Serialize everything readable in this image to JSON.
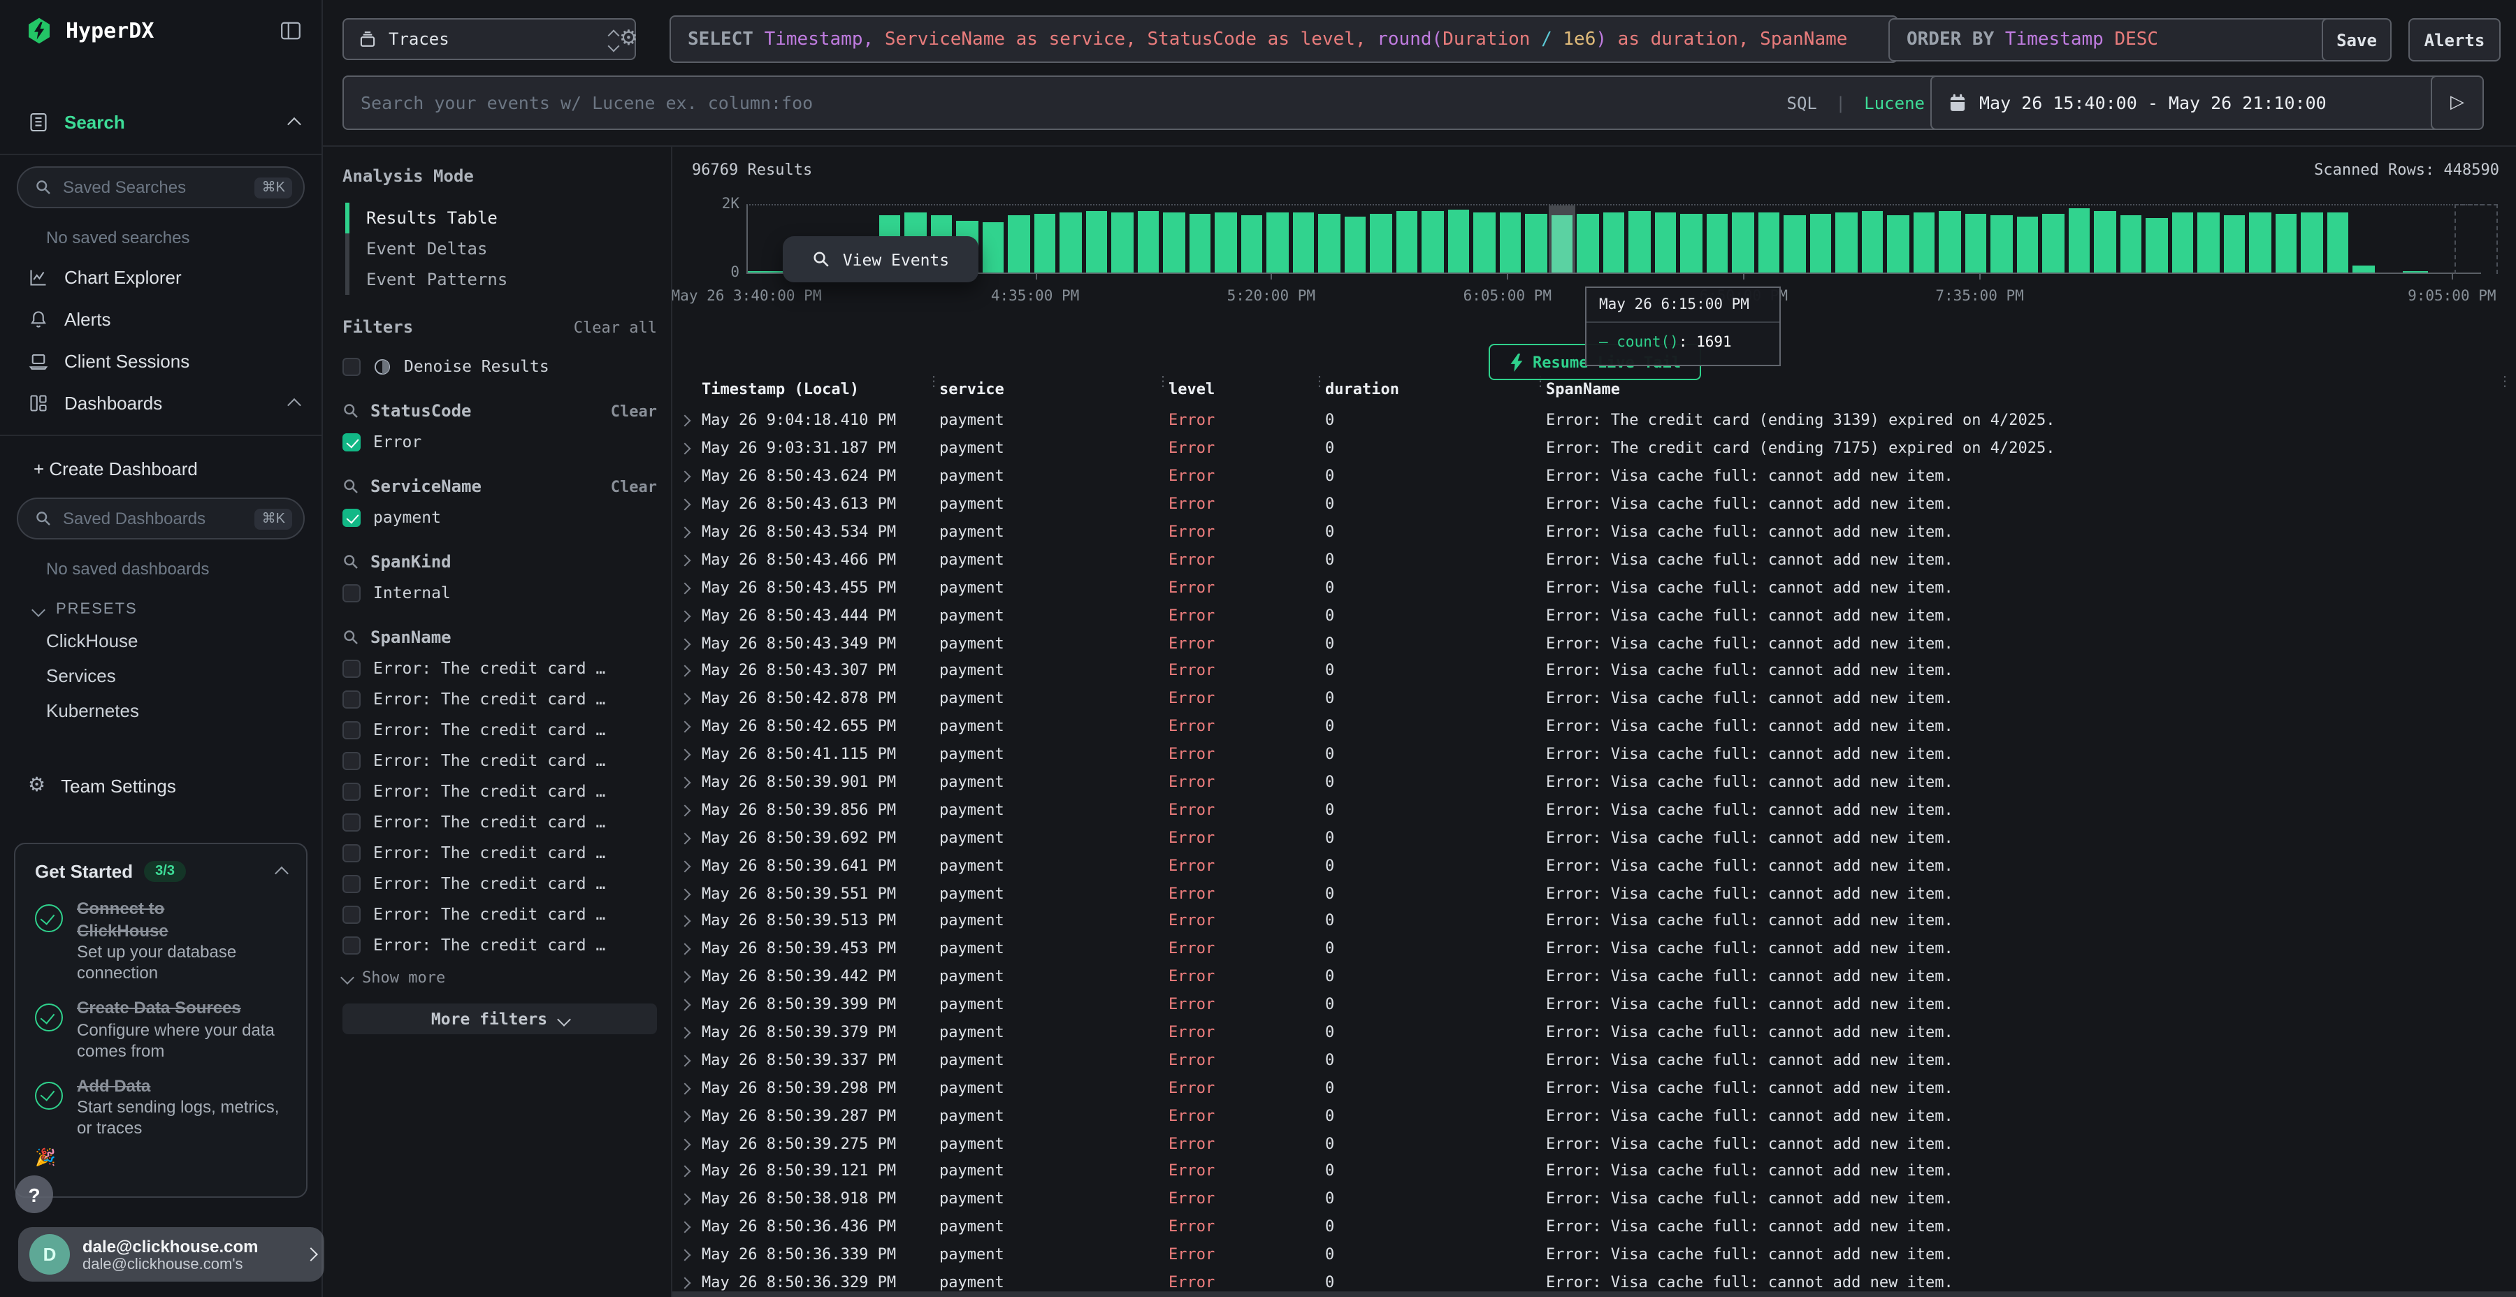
{
  "topbar": {
    "source_label": "Traces",
    "sql_tokens": [
      {
        "c": "kw",
        "t": "SELECT "
      },
      {
        "c": "p",
        "t": "Timestamp"
      },
      {
        "c": "p",
        "t": ", "
      },
      {
        "c": "s",
        "t": "ServiceName as service"
      },
      {
        "c": "s",
        "t": ", "
      },
      {
        "c": "s",
        "t": "StatusCode as level"
      },
      {
        "c": "s",
        "t": ", "
      },
      {
        "c": "p",
        "t": "round("
      },
      {
        "c": "s",
        "t": "Duration "
      },
      {
        "c": "c",
        "t": "/ "
      },
      {
        "c": "n",
        "t": "1e6"
      },
      {
        "c": "p",
        "t": ")"
      },
      {
        "c": "s",
        "t": " as duration, SpanName"
      }
    ],
    "order_tokens": [
      {
        "c": "kw",
        "t": "ORDER BY "
      },
      {
        "c": "p",
        "t": "Timestamp "
      },
      {
        "c": "s",
        "t": "DESC"
      }
    ],
    "save_label": "Save",
    "alerts_label": "Alerts",
    "search_placeholder": "Search your events w/ Lucene ex. column:foo",
    "lang_sql": "SQL",
    "lang_sep": "|",
    "lang_lucene": "Lucene",
    "date_range": "May 26 15:40:00 - May 26 21:10:00",
    "run_glyph": "▷"
  },
  "sidebar": {
    "brand": "HyperDX",
    "nav": [
      {
        "label": "Search"
      },
      {
        "label": "Chart Explorer"
      },
      {
        "label": "Alerts"
      },
      {
        "label": "Client Sessions"
      },
      {
        "label": "Dashboards"
      }
    ],
    "saved_searches_placeholder": "Saved Searches",
    "saved_searches_kbd": "⌘K",
    "no_saved_searches": "No saved searches",
    "create_dashboard": "+ Create Dashboard",
    "saved_dashboards_placeholder": "Saved Dashboards",
    "saved_dashboards_kbd": "⌘K",
    "no_saved_dashboards": "No saved dashboards",
    "presets_label": "PRESETS",
    "presets": [
      "ClickHouse",
      "Services",
      "Kubernetes"
    ],
    "team_settings": "Team Settings",
    "get_started": {
      "title": "Get Started",
      "badge": "3/3",
      "items": [
        {
          "title": "Connect to ClickHouse",
          "desc": "Set up your database connection"
        },
        {
          "title": "Create Data Sources",
          "desc": "Configure where your data comes from"
        },
        {
          "title": "Add Data",
          "desc": "Start sending logs, metrics, or traces"
        }
      ],
      "hidden_item_emoji": "🎉"
    },
    "help_label": "?",
    "user": {
      "initial": "D",
      "email": "dale@clickhouse.com",
      "sub": "dale@clickhouse.com's"
    }
  },
  "filters_panel": {
    "analysis_mode_label": "Analysis Mode",
    "modes": [
      "Results Table",
      "Event Deltas",
      "Event Patterns"
    ],
    "active_mode": "Results Table",
    "filters_label": "Filters",
    "clear_all_label": "Clear all",
    "denoise_label": "Denoise Results",
    "groups": [
      {
        "name": "StatusCode",
        "clear": "Clear",
        "options": [
          {
            "label": "Error",
            "checked": true
          }
        ]
      },
      {
        "name": "ServiceName",
        "clear": "Clear",
        "options": [
          {
            "label": "payment",
            "checked": true
          }
        ]
      },
      {
        "name": "SpanKind",
        "clear": "",
        "options": [
          {
            "label": "Internal",
            "checked": false
          }
        ]
      }
    ],
    "spanname_group": {
      "name": "SpanName",
      "options": [
        "Error: The credit card …",
        "Error: The credit card …",
        "Error: The credit card …",
        "Error: The credit card …",
        "Error: The credit card …",
        "Error: The credit card …",
        "Error: The credit card …",
        "Error: The credit card …",
        "Error: The credit card …",
        "Error: The credit card …"
      ]
    },
    "show_more_label": "Show more",
    "more_filters_label": "More filters"
  },
  "results": {
    "count_label": "96769 Results",
    "scanned_label": "Scanned Rows: 448590",
    "view_events_label": "View Events",
    "resume_live_tail_label": "Resume Live Tail",
    "columns": [
      "Timestamp (Local)",
      "service",
      "level",
      "duration",
      "SpanName"
    ],
    "rows": [
      [
        "May 26 9:04:18.410 PM",
        "payment",
        "Error",
        "0",
        "Error: The credit card (ending 3139) expired on 4/2025."
      ],
      [
        "May 26 9:03:31.187 PM",
        "payment",
        "Error",
        "0",
        "Error: The credit card (ending 7175) expired on 4/2025."
      ],
      [
        "May 26 8:50:43.624 PM",
        "payment",
        "Error",
        "0",
        "Error: Visa cache full: cannot add new item."
      ],
      [
        "May 26 8:50:43.613 PM",
        "payment",
        "Error",
        "0",
        "Error: Visa cache full: cannot add new item."
      ],
      [
        "May 26 8:50:43.534 PM",
        "payment",
        "Error",
        "0",
        "Error: Visa cache full: cannot add new item."
      ],
      [
        "May 26 8:50:43.466 PM",
        "payment",
        "Error",
        "0",
        "Error: Visa cache full: cannot add new item."
      ],
      [
        "May 26 8:50:43.455 PM",
        "payment",
        "Error",
        "0",
        "Error: Visa cache full: cannot add new item."
      ],
      [
        "May 26 8:50:43.444 PM",
        "payment",
        "Error",
        "0",
        "Error: Visa cache full: cannot add new item."
      ],
      [
        "May 26 8:50:43.349 PM",
        "payment",
        "Error",
        "0",
        "Error: Visa cache full: cannot add new item."
      ],
      [
        "May 26 8:50:43.307 PM",
        "payment",
        "Error",
        "0",
        "Error: Visa cache full: cannot add new item."
      ],
      [
        "May 26 8:50:42.878 PM",
        "payment",
        "Error",
        "0",
        "Error: Visa cache full: cannot add new item."
      ],
      [
        "May 26 8:50:42.655 PM",
        "payment",
        "Error",
        "0",
        "Error: Visa cache full: cannot add new item."
      ],
      [
        "May 26 8:50:41.115 PM",
        "payment",
        "Error",
        "0",
        "Error: Visa cache full: cannot add new item."
      ],
      [
        "May 26 8:50:39.901 PM",
        "payment",
        "Error",
        "0",
        "Error: Visa cache full: cannot add new item."
      ],
      [
        "May 26 8:50:39.856 PM",
        "payment",
        "Error",
        "0",
        "Error: Visa cache full: cannot add new item."
      ],
      [
        "May 26 8:50:39.692 PM",
        "payment",
        "Error",
        "0",
        "Error: Visa cache full: cannot add new item."
      ],
      [
        "May 26 8:50:39.641 PM",
        "payment",
        "Error",
        "0",
        "Error: Visa cache full: cannot add new item."
      ],
      [
        "May 26 8:50:39.551 PM",
        "payment",
        "Error",
        "0",
        "Error: Visa cache full: cannot add new item."
      ],
      [
        "May 26 8:50:39.513 PM",
        "payment",
        "Error",
        "0",
        "Error: Visa cache full: cannot add new item."
      ],
      [
        "May 26 8:50:39.453 PM",
        "payment",
        "Error",
        "0",
        "Error: Visa cache full: cannot add new item."
      ],
      [
        "May 26 8:50:39.442 PM",
        "payment",
        "Error",
        "0",
        "Error: Visa cache full: cannot add new item."
      ],
      [
        "May 26 8:50:39.399 PM",
        "payment",
        "Error",
        "0",
        "Error: Visa cache full: cannot add new item."
      ],
      [
        "May 26 8:50:39.379 PM",
        "payment",
        "Error",
        "0",
        "Error: Visa cache full: cannot add new item."
      ],
      [
        "May 26 8:50:39.337 PM",
        "payment",
        "Error",
        "0",
        "Error: Visa cache full: cannot add new item."
      ],
      [
        "May 26 8:50:39.298 PM",
        "payment",
        "Error",
        "0",
        "Error: Visa cache full: cannot add new item."
      ],
      [
        "May 26 8:50:39.287 PM",
        "payment",
        "Error",
        "0",
        "Error: Visa cache full: cannot add new item."
      ],
      [
        "May 26 8:50:39.275 PM",
        "payment",
        "Error",
        "0",
        "Error: Visa cache full: cannot add new item."
      ],
      [
        "May 26 8:50:39.121 PM",
        "payment",
        "Error",
        "0",
        "Error: Visa cache full: cannot add new item."
      ],
      [
        "May 26 8:50:38.918 PM",
        "payment",
        "Error",
        "0",
        "Error: Visa cache full: cannot add new item."
      ],
      [
        "May 26 8:50:36.436 PM",
        "payment",
        "Error",
        "0",
        "Error: Visa cache full: cannot add new item."
      ],
      [
        "May 26 8:50:36.339 PM",
        "payment",
        "Error",
        "0",
        "Error: Visa cache full: cannot add new item."
      ],
      [
        "May 26 8:50:36.329 PM",
        "payment",
        "Error",
        "0",
        "Error: Visa cache full: cannot add new item."
      ]
    ]
  },
  "chart_data": {
    "type": "bar",
    "title": "",
    "xlabel": "",
    "ylabel": "",
    "ylim": [
      0,
      2000
    ],
    "y_ticks": [
      "2K",
      "0"
    ],
    "grid": "dotted-top",
    "legend": "none",
    "bucket_minutes": 5,
    "x_start": "May 26 3:40:00 PM",
    "x_end": "May 26 9:05:00 PM",
    "x_tick_labels": [
      {
        "label": "May 26 3:40:00 PM",
        "pos": 0.0
      },
      {
        "label": "4:35:00 PM",
        "pos": 0.1667
      },
      {
        "label": "5:20:00 PM",
        "pos": 0.303
      },
      {
        "label": "6:05:00 PM",
        "pos": 0.4394
      },
      {
        "label": "6:50:00 PM",
        "pos": 0.5758
      },
      {
        "label": "7:35:00 PM",
        "pos": 0.7121
      },
      {
        "label": "9:05:00 PM",
        "pos": 0.9848
      }
    ],
    "values": [
      12,
      12,
      12,
      12,
      12,
      1700,
      1780,
      1690,
      1560,
      1520,
      1720,
      1745,
      1800,
      1825,
      1780,
      1840,
      1795,
      1760,
      1780,
      1720,
      1800,
      1780,
      1750,
      1680,
      1760,
      1820,
      1850,
      1880,
      1810,
      1790,
      1740,
      1691,
      1755,
      1780,
      1820,
      1800,
      1760,
      1740,
      1800,
      1780,
      1690,
      1760,
      1800,
      1850,
      1700,
      1780,
      1820,
      1760,
      1700,
      1650,
      1750,
      1900,
      1840,
      1720,
      1640,
      1810,
      1800,
      1690,
      1780,
      1760,
      1800,
      1790,
      190,
      0,
      10,
      0,
      0
    ],
    "hover": {
      "index": 31,
      "time": "May 26 6:15:00 PM",
      "series": "— count()",
      "value_str": ": 1691"
    }
  }
}
